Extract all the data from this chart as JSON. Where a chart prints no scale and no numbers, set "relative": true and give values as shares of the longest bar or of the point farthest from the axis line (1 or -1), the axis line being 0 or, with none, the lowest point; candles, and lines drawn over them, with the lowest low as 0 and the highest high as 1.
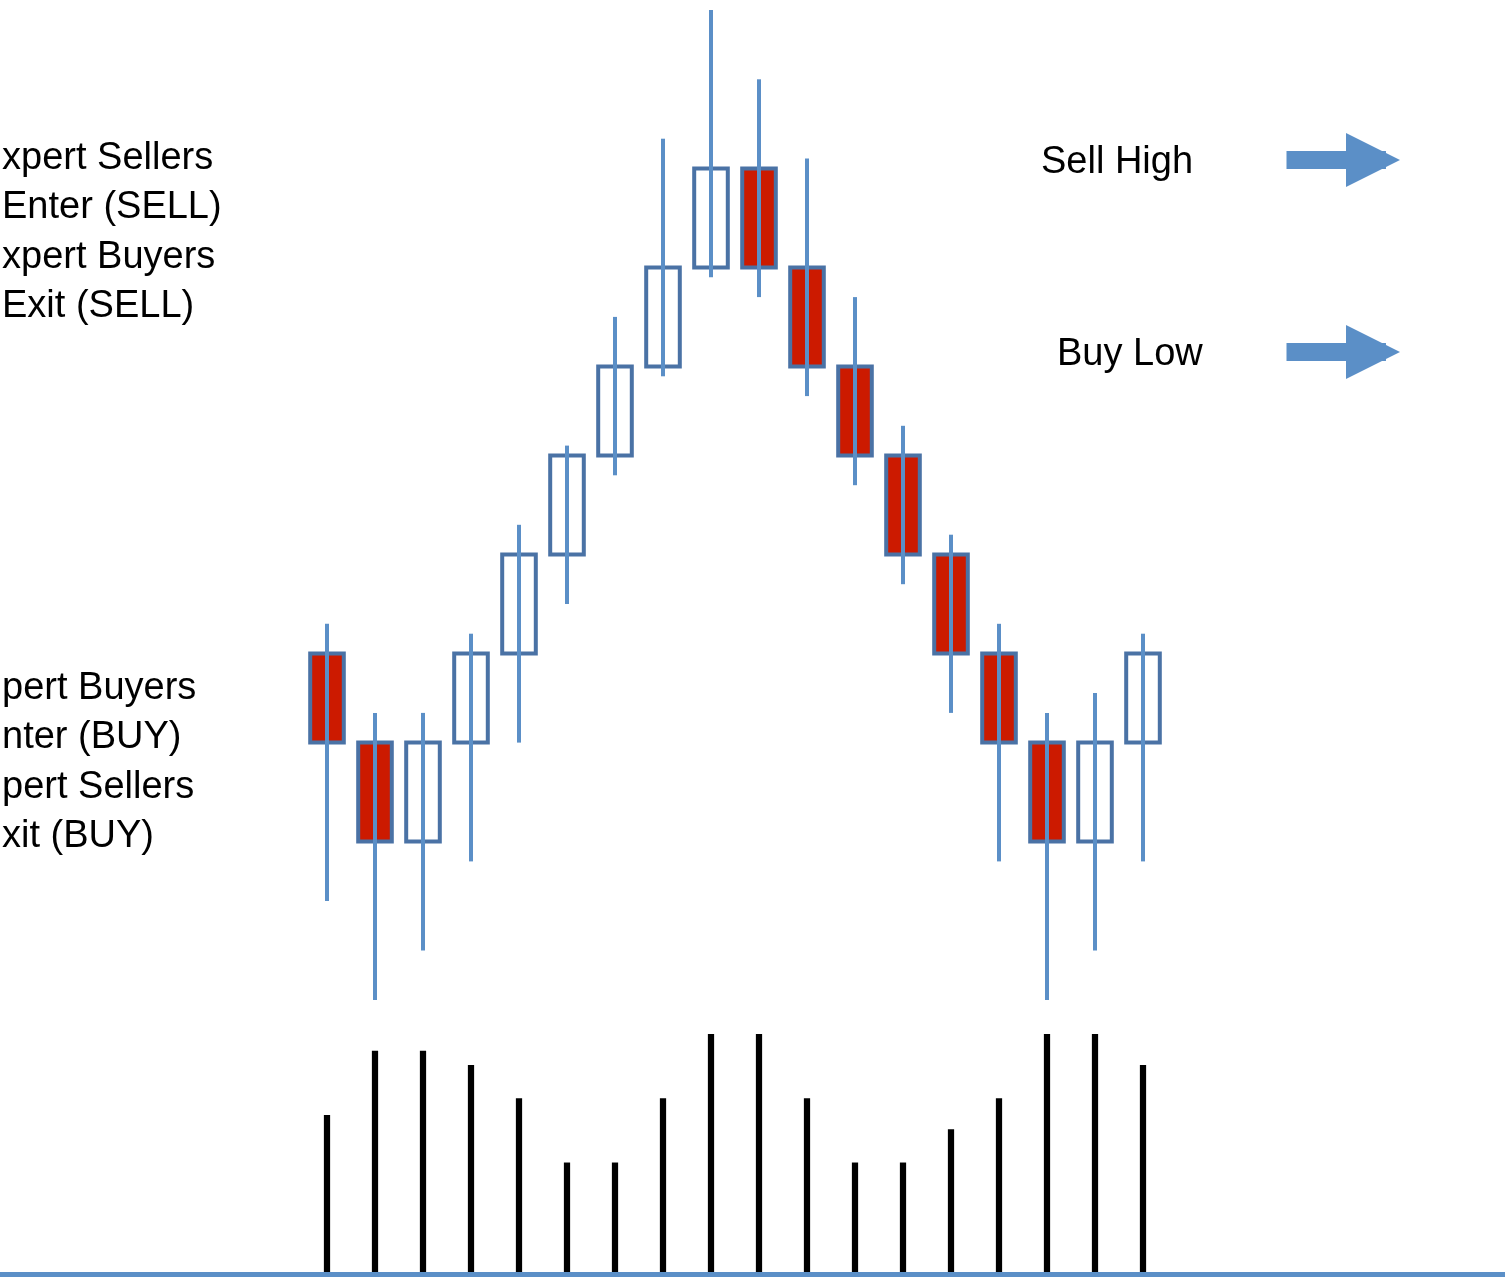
{
  "chart_data": [
    {
      "type": "candlestick",
      "relative": true,
      "categories": [
        null,
        null,
        null,
        null,
        null,
        null,
        null,
        null,
        null,
        null,
        null,
        null,
        null,
        null,
        null,
        null,
        null,
        null
      ],
      "ohlc": [
        [
          0.35,
          0.38,
          0.1,
          0.26
        ],
        [
          0.26,
          0.29,
          0,
          0.16
        ],
        [
          0.16,
          0.29,
          0.05,
          0.26
        ],
        [
          0.26,
          0.37,
          0.14,
          0.35
        ],
        [
          0.35,
          0.48,
          0.26,
          0.45
        ],
        [
          0.45,
          0.56,
          0.4,
          0.55
        ],
        [
          0.55,
          0.69,
          0.53,
          0.64
        ],
        [
          0.64,
          0.87,
          0.63,
          0.74
        ],
        [
          0.74,
          1,
          0.73,
          0.84
        ],
        [
          0.84,
          0.93,
          0.71,
          0.74
        ],
        [
          0.74,
          0.85,
          0.61,
          0.64
        ],
        [
          0.64,
          0.71,
          0.52,
          0.55
        ],
        [
          0.55,
          0.58,
          0.42,
          0.45
        ],
        [
          0.45,
          0.47,
          0.29,
          0.35
        ],
        [
          0.35,
          0.38,
          0.14,
          0.26
        ],
        [
          0.26,
          0.29,
          0,
          0.16
        ],
        [
          0.16,
          0.31,
          0.05,
          0.26
        ],
        [
          0.26,
          0.37,
          0.14,
          0.35
        ]
      ],
      "colors": [
        "#cc1a00",
        "#cc1a00",
        "#ffffff",
        "#ffffff",
        "#ffffff",
        "#ffffff",
        "#ffffff",
        "#ffffff",
        "#ffffff",
        "#cc1a00",
        "#cc1a00",
        "#cc1a00",
        "#cc1a00",
        "#cc1a00",
        "#cc1a00",
        "#cc1a00",
        "#ffffff",
        "#ffffff"
      ],
      "annotations": [
        "xpert Sellers\nEnter (SELL)\nxpert Buyers\nExit (SELL)",
        "pert Buyers\nnter (BUY)\npert Sellers\nxit (BUY)",
        "Sell High",
        "Buy Low"
      ]
    },
    {
      "type": "bar",
      "relative": true,
      "categories": [
        null,
        null,
        null,
        null,
        null,
        null,
        null,
        null,
        null,
        null,
        null,
        null,
        null,
        null,
        null,
        null,
        null,
        null
      ],
      "values": [
        0.66,
        0.93,
        0.93,
        0.87,
        0.73,
        0.46,
        0.46,
        0.73,
        1,
        1,
        0.73,
        0.46,
        0.46,
        0.6,
        0.73,
        1,
        1,
        0.87
      ],
      "color": "#000000"
    }
  ]
}
